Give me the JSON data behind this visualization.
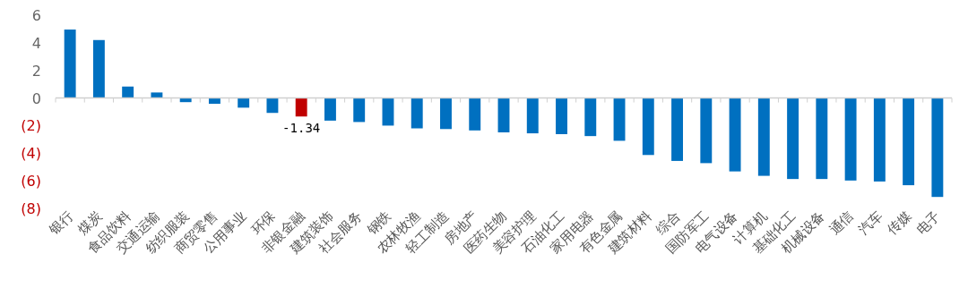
{
  "chart_data": {
    "type": "bar",
    "categories": [
      "银行",
      "煤炭",
      "食品饮料",
      "交通运输",
      "纺织服装",
      "商贸零售",
      "公用事业",
      "环保",
      "非银金融",
      "建筑装饰",
      "社会服务",
      "钢铁",
      "农林牧渔",
      "轻工制造",
      "房地产",
      "医药生物",
      "美容护理",
      "石油化工",
      "家用电器",
      "有色金属",
      "建筑材料",
      "综合",
      "国防军工",
      "电气设备",
      "计算机",
      "基础化工",
      "机械设备",
      "通信",
      "汽车",
      "传媒",
      "电子"
    ],
    "values": [
      4.96,
      4.2,
      0.83,
      0.4,
      -0.3,
      -0.42,
      -0.7,
      -1.08,
      -1.34,
      -1.64,
      -1.74,
      -2.0,
      -2.2,
      -2.25,
      -2.35,
      -2.49,
      -2.56,
      -2.62,
      -2.76,
      -3.1,
      -4.13,
      -4.56,
      -4.72,
      -5.32,
      -5.64,
      -5.87,
      -5.87,
      -5.98,
      -6.05,
      -6.32,
      -7.17
    ],
    "colors": [
      "#0070c0",
      "#0070c0",
      "#0070c0",
      "#0070c0",
      "#0070c0",
      "#0070c0",
      "#0070c0",
      "#0070c0",
      "#c00000",
      "#0070c0",
      "#0070c0",
      "#0070c0",
      "#0070c0",
      "#0070c0",
      "#0070c0",
      "#0070c0",
      "#0070c0",
      "#0070c0",
      "#0070c0",
      "#0070c0",
      "#0070c0",
      "#0070c0",
      "#0070c0",
      "#0070c0",
      "#0070c0",
      "#0070c0",
      "#0070c0",
      "#0070c0",
      "#0070c0",
      "#0070c0",
      "#0070c0"
    ],
    "value_labels": [
      null,
      null,
      null,
      null,
      null,
      null,
      null,
      null,
      "-1.34",
      null,
      null,
      null,
      null,
      null,
      null,
      null,
      null,
      null,
      null,
      null,
      null,
      null,
      null,
      null,
      null,
      null,
      null,
      null,
      null,
      null,
      null
    ],
    "ylim": [
      -8,
      6
    ],
    "yticks": [
      {
        "value": -8,
        "label": "(8)"
      },
      {
        "value": -6,
        "label": "(6)"
      },
      {
        "value": -4,
        "label": "(4)"
      },
      {
        "value": -2,
        "label": "(2)"
      },
      0,
      2,
      4,
      6
    ]
  }
}
